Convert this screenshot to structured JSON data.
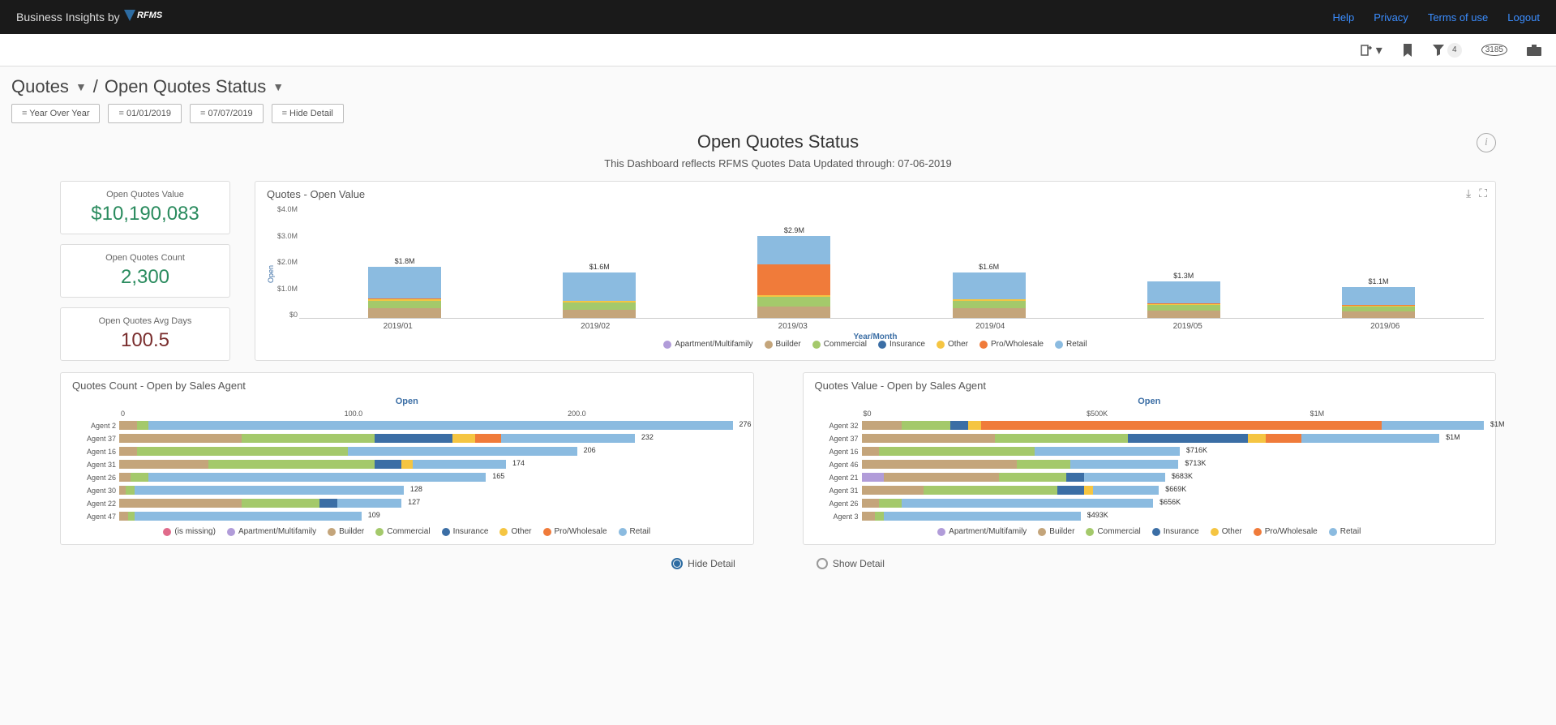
{
  "header": {
    "brand_prefix": "Business Insights by",
    "brand_name": "RFMS",
    "links": {
      "help": "Help",
      "privacy": "Privacy",
      "terms": "Terms of use",
      "logout": "Logout"
    }
  },
  "toolbar": {
    "filter_count": "4",
    "history_count": "3185"
  },
  "breadcrumb": {
    "level1": "Quotes",
    "level2": "Open Quotes Status"
  },
  "filters": [
    "= Year Over Year",
    "= 01/01/2019",
    "= 07/07/2019",
    "= Hide Detail"
  ],
  "dashboard": {
    "title": "Open Quotes Status",
    "subtitle": "This Dashboard reflects RFMS Quotes Data Updated through: 07-06-2019"
  },
  "kpis": [
    {
      "label": "Open Quotes Value",
      "value": "$10,190,083",
      "color": "#2a8b5e"
    },
    {
      "label": "Open Quotes Count",
      "value": "2,300",
      "color": "#2a8b5e"
    },
    {
      "label": "Open Quotes Avg Days",
      "value": "100.5",
      "color": "#7a2e2e"
    }
  ],
  "colors": {
    "missing": "#e06b8b",
    "apartment": "#b19cd9",
    "builder": "#c4a57b",
    "commercial": "#a4c96b",
    "insurance": "#3b6ea5",
    "other": "#f5c542",
    "pro": "#f07b3a",
    "retail": "#8bbbe0"
  },
  "chart1": {
    "title": "Quotes - Open Value",
    "y_ticks": [
      "$4.0M",
      "$3.0M",
      "$2.0M",
      "$1.0M",
      "$0"
    ],
    "y_label": "Open",
    "x_label": "Year/Month",
    "max": 4.0,
    "bars": [
      {
        "x": "2019/01",
        "total": "$1.8M",
        "segs": [
          {
            "c": "builder",
            "v": 0.35
          },
          {
            "c": "commercial",
            "v": 0.25
          },
          {
            "c": "other",
            "v": 0.05
          },
          {
            "c": "pro",
            "v": 0.05
          },
          {
            "c": "retail",
            "v": 1.1
          }
        ]
      },
      {
        "x": "2019/02",
        "total": "$1.6M",
        "segs": [
          {
            "c": "builder",
            "v": 0.3
          },
          {
            "c": "commercial",
            "v": 0.25
          },
          {
            "c": "other",
            "v": 0.05
          },
          {
            "c": "retail",
            "v": 1.0
          }
        ]
      },
      {
        "x": "2019/03",
        "total": "$2.9M",
        "segs": [
          {
            "c": "builder",
            "v": 0.4
          },
          {
            "c": "commercial",
            "v": 0.35
          },
          {
            "c": "other",
            "v": 0.05
          },
          {
            "c": "pro",
            "v": 1.1
          },
          {
            "c": "retail",
            "v": 1.0
          }
        ]
      },
      {
        "x": "2019/04",
        "total": "$1.6M",
        "segs": [
          {
            "c": "builder",
            "v": 0.35
          },
          {
            "c": "commercial",
            "v": 0.25
          },
          {
            "c": "other",
            "v": 0.05
          },
          {
            "c": "retail",
            "v": 0.95
          }
        ]
      },
      {
        "x": "2019/05",
        "total": "$1.3M",
        "segs": [
          {
            "c": "builder",
            "v": 0.25
          },
          {
            "c": "commercial",
            "v": 0.2
          },
          {
            "c": "other",
            "v": 0.04
          },
          {
            "c": "pro",
            "v": 0.03
          },
          {
            "c": "retail",
            "v": 0.78
          }
        ]
      },
      {
        "x": "2019/06",
        "total": "$1.1M",
        "segs": [
          {
            "c": "builder",
            "v": 0.22
          },
          {
            "c": "commercial",
            "v": 0.18
          },
          {
            "c": "other",
            "v": 0.04
          },
          {
            "c": "pro",
            "v": 0.03
          },
          {
            "c": "retail",
            "v": 0.63
          }
        ]
      }
    ],
    "legend": [
      {
        "c": "apartment",
        "t": "Apartment/Multifamily"
      },
      {
        "c": "builder",
        "t": "Builder"
      },
      {
        "c": "commercial",
        "t": "Commercial"
      },
      {
        "c": "insurance",
        "t": "Insurance"
      },
      {
        "c": "other",
        "t": "Other"
      },
      {
        "c": "pro",
        "t": "Pro/Wholesale"
      },
      {
        "c": "retail",
        "t": "Retail"
      }
    ]
  },
  "chart2": {
    "title": "Quotes Count - Open by Sales Agent",
    "subtitle": "Open",
    "x_ticks": [
      {
        "p": 0,
        "t": "0"
      },
      {
        "p": 36,
        "t": "100.0"
      },
      {
        "p": 72,
        "t": "200.0"
      }
    ],
    "max": 280,
    "rows": [
      {
        "agent": "Agent 2",
        "val": "276",
        "segs": [
          {
            "c": "builder",
            "v": 8
          },
          {
            "c": "commercial",
            "v": 5
          },
          {
            "c": "retail",
            "v": 263
          }
        ]
      },
      {
        "agent": "Agent 37",
        "val": "232",
        "segs": [
          {
            "c": "builder",
            "v": 55
          },
          {
            "c": "commercial",
            "v": 60
          },
          {
            "c": "insurance",
            "v": 35
          },
          {
            "c": "other",
            "v": 10
          },
          {
            "c": "pro",
            "v": 12
          },
          {
            "c": "retail",
            "v": 60
          }
        ]
      },
      {
        "agent": "Agent 16",
        "val": "206",
        "segs": [
          {
            "c": "builder",
            "v": 8
          },
          {
            "c": "commercial",
            "v": 95
          },
          {
            "c": "retail",
            "v": 103
          }
        ]
      },
      {
        "agent": "Agent 31",
        "val": "174",
        "segs": [
          {
            "c": "builder",
            "v": 40
          },
          {
            "c": "commercial",
            "v": 75
          },
          {
            "c": "insurance",
            "v": 12
          },
          {
            "c": "other",
            "v": 5
          },
          {
            "c": "retail",
            "v": 42
          }
        ]
      },
      {
        "agent": "Agent 26",
        "val": "165",
        "segs": [
          {
            "c": "builder",
            "v": 5
          },
          {
            "c": "commercial",
            "v": 8
          },
          {
            "c": "retail",
            "v": 152
          }
        ]
      },
      {
        "agent": "Agent 30",
        "val": "128",
        "segs": [
          {
            "c": "builder",
            "v": 3
          },
          {
            "c": "commercial",
            "v": 4
          },
          {
            "c": "retail",
            "v": 121
          }
        ]
      },
      {
        "agent": "Agent 22",
        "val": "127",
        "segs": [
          {
            "c": "builder",
            "v": 55
          },
          {
            "c": "commercial",
            "v": 35
          },
          {
            "c": "insurance",
            "v": 8
          },
          {
            "c": "retail",
            "v": 29
          }
        ]
      },
      {
        "agent": "Agent 47",
        "val": "109",
        "segs": [
          {
            "c": "builder",
            "v": 4
          },
          {
            "c": "commercial",
            "v": 3
          },
          {
            "c": "retail",
            "v": 102
          }
        ]
      }
    ],
    "legend": [
      {
        "c": "missing",
        "t": "(is missing)"
      },
      {
        "c": "apartment",
        "t": "Apartment/Multifamily"
      },
      {
        "c": "builder",
        "t": "Builder"
      },
      {
        "c": "commercial",
        "t": "Commercial"
      },
      {
        "c": "insurance",
        "t": "Insurance"
      },
      {
        "c": "other",
        "t": "Other"
      },
      {
        "c": "pro",
        "t": "Pro/Wholesale"
      },
      {
        "c": "retail",
        "t": "Retail"
      }
    ]
  },
  "chart3": {
    "title": "Quotes Value - Open by Sales Agent",
    "subtitle": "Open",
    "x_ticks": [
      {
        "p": 0,
        "t": "$0"
      },
      {
        "p": 36,
        "t": "$500K"
      },
      {
        "p": 72,
        "t": "$1M"
      }
    ],
    "max": 1400,
    "rows": [
      {
        "agent": "Agent 32",
        "val": "$1M",
        "segs": [
          {
            "c": "builder",
            "v": 90
          },
          {
            "c": "commercial",
            "v": 110
          },
          {
            "c": "insurance",
            "v": 40
          },
          {
            "c": "other",
            "v": 30
          },
          {
            "c": "pro",
            "v": 900
          },
          {
            "c": "retail",
            "v": 230
          }
        ]
      },
      {
        "agent": "Agent 37",
        "val": "$1M",
        "segs": [
          {
            "c": "builder",
            "v": 300
          },
          {
            "c": "commercial",
            "v": 300
          },
          {
            "c": "insurance",
            "v": 270
          },
          {
            "c": "other",
            "v": 40
          },
          {
            "c": "pro",
            "v": 80
          },
          {
            "c": "retail",
            "v": 310
          }
        ]
      },
      {
        "agent": "Agent 16",
        "val": "$716K",
        "segs": [
          {
            "c": "builder",
            "v": 40
          },
          {
            "c": "commercial",
            "v": 350
          },
          {
            "c": "retail",
            "v": 326
          }
        ]
      },
      {
        "agent": "Agent 46",
        "val": "$713K",
        "segs": [
          {
            "c": "builder",
            "v": 350
          },
          {
            "c": "commercial",
            "v": 120
          },
          {
            "c": "retail",
            "v": 243
          }
        ]
      },
      {
        "agent": "Agent 21",
        "val": "$683K",
        "segs": [
          {
            "c": "apartment",
            "v": 50
          },
          {
            "c": "builder",
            "v": 260
          },
          {
            "c": "commercial",
            "v": 150
          },
          {
            "c": "insurance",
            "v": 40
          },
          {
            "c": "retail",
            "v": 183
          }
        ]
      },
      {
        "agent": "Agent 31",
        "val": "$669K",
        "segs": [
          {
            "c": "builder",
            "v": 140
          },
          {
            "c": "commercial",
            "v": 300
          },
          {
            "c": "insurance",
            "v": 60
          },
          {
            "c": "other",
            "v": 20
          },
          {
            "c": "retail",
            "v": 149
          }
        ]
      },
      {
        "agent": "Agent 26",
        "val": "$656K",
        "segs": [
          {
            "c": "builder",
            "v": 40
          },
          {
            "c": "commercial",
            "v": 50
          },
          {
            "c": "retail",
            "v": 566
          }
        ]
      },
      {
        "agent": "Agent 3",
        "val": "$493K",
        "segs": [
          {
            "c": "builder",
            "v": 30
          },
          {
            "c": "commercial",
            "v": 20
          },
          {
            "c": "retail",
            "v": 443
          }
        ]
      }
    ],
    "legend": [
      {
        "c": "apartment",
        "t": "Apartment/Multifamily"
      },
      {
        "c": "builder",
        "t": "Builder"
      },
      {
        "c": "commercial",
        "t": "Commercial"
      },
      {
        "c": "insurance",
        "t": "Insurance"
      },
      {
        "c": "other",
        "t": "Other"
      },
      {
        "c": "pro",
        "t": "Pro/Wholesale"
      },
      {
        "c": "retail",
        "t": "Retail"
      }
    ]
  },
  "radios": {
    "hide": "Hide Detail",
    "show": "Show Detail"
  }
}
